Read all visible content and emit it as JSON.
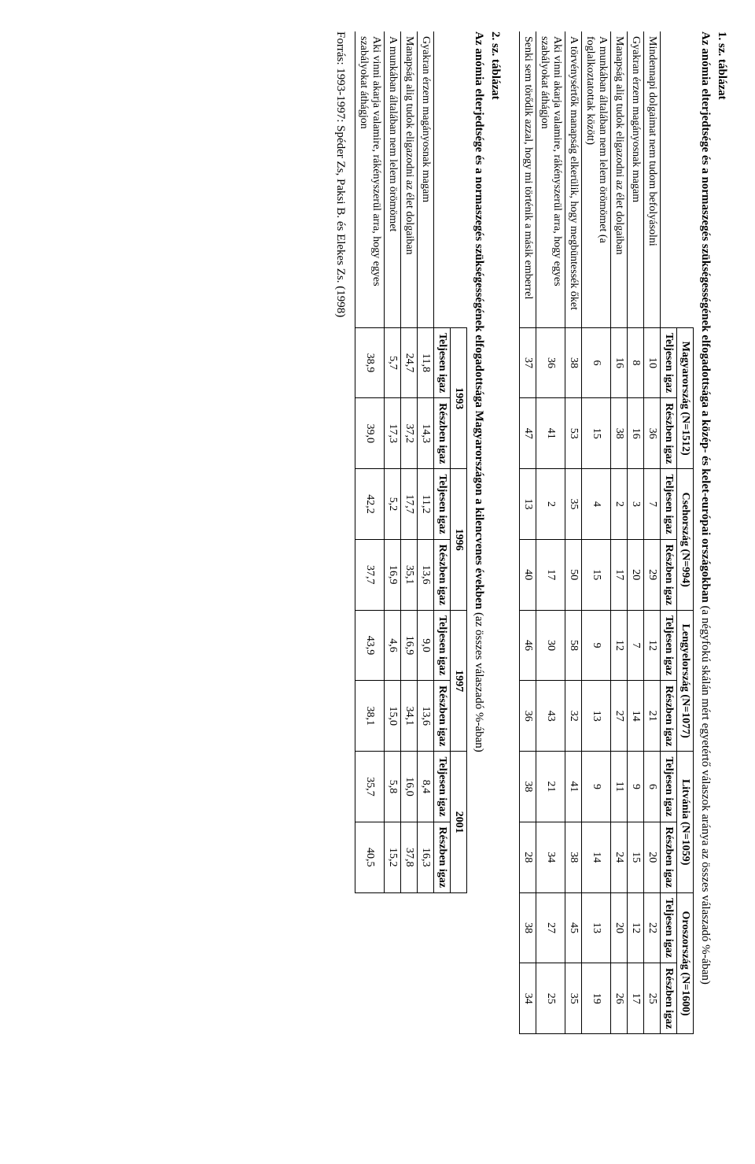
{
  "table1": {
    "label": "1. sz. táblázat",
    "title_bold": "Az anómia elterjedtsége és a normaszegés szükségességének elfogadottsága a közép- és kelet-európai országokban",
    "title_rest": " (a négyfokú skálán mért egyetértő válaszok aránya az összes válaszadó %-ában)",
    "countries": [
      "Magyarország (N=1512)",
      "Csehország (N=994)",
      "Lengyelország (N=1077)",
      "Litvánia (N=1059)",
      "Oroszország (N=1600)"
    ],
    "sub": {
      "t": "Teljesen igaz",
      "r": "Részben igaz"
    },
    "rows": [
      {
        "label": "Mindennapi dolgaimat nem tudom befolyásolni",
        "v": [
          "10",
          "36",
          "7",
          "29",
          "12",
          "21",
          "6",
          "20",
          "22",
          "25"
        ]
      },
      {
        "label": "Gyakran érzem magányosnak magam",
        "v": [
          "8",
          "16",
          "3",
          "20",
          "7",
          "14",
          "9",
          "15",
          "12",
          "17"
        ]
      },
      {
        "label": "Manapság alig tudok eligazodni az élet dolgaiban",
        "v": [
          "16",
          "38",
          "2",
          "17",
          "12",
          "27",
          "11",
          "24",
          "20",
          "26"
        ]
      },
      {
        "label": "A munkában általában nem lelem örömömet (a foglalkoztatottak között)",
        "v": [
          "6",
          "15",
          "4",
          "15",
          "9",
          "13",
          "9",
          "14",
          "13",
          "19"
        ]
      },
      {
        "label": "A törvénysértők manapság elkerülik, hogy megbüntessék őket",
        "v": [
          "38",
          "53",
          "35",
          "50",
          "58",
          "32",
          "41",
          "38",
          "45",
          "35"
        ]
      },
      {
        "label": "Aki vinni akarja valamire, rákényszerül arra, hogy egyes szabályokat áthágjon",
        "v": [
          "36",
          "41",
          "2",
          "17",
          "30",
          "43",
          "21",
          "34",
          "27",
          "25"
        ]
      },
      {
        "label": "Senki sem törődik azzal, hogy mi történik a másik emberrel",
        "v": [
          "37",
          "47",
          "13",
          "40",
          "46",
          "36",
          "38",
          "28",
          "38",
          "34"
        ]
      }
    ]
  },
  "table2": {
    "label": "2. sz. táblázat",
    "title_bold": "Az anómia elterjedtsége és a normaszegés szükségességének elfogadottsága Magyarországon a kilencvenes években",
    "title_rest": " (az összes válaszadó %-ában)",
    "years": [
      "1993",
      "1996",
      "1997",
      "2001"
    ],
    "sub": {
      "t": "Teljesen igaz",
      "r": "Részben igaz"
    },
    "rows": [
      {
        "label": "Gyakran érzem magányosnak magam",
        "v": [
          "11,8",
          "14,3",
          "11,2",
          "13,6",
          "9,0",
          "13,6",
          "8,4",
          "16,3"
        ]
      },
      {
        "label": "Manapság alig tudok eligazodni az élet dolgaiban",
        "v": [
          "24,7",
          "37,2",
          "17,7",
          "35,1",
          "16,9",
          "34,1",
          "16,0",
          "37,8"
        ]
      },
      {
        "label": "A munkában általában nem lelem örömömet",
        "v": [
          "5,7",
          "17,3",
          "5,2",
          "16,9",
          "4,6",
          "15,0",
          "5,8",
          "15,2"
        ]
      },
      {
        "label": "Aki vinni akarja valamire, rákényszerül arra, hogy egyes szabályokat áthágjon",
        "v": [
          "38,9",
          "39,0",
          "42,2",
          "37,7",
          "43,9",
          "38,1",
          "35,7",
          "40,5"
        ]
      }
    ]
  },
  "source": "Forrás: 1993-1997: Spéder Zs, Paksi B. és Elekes Zs. (1998)"
}
